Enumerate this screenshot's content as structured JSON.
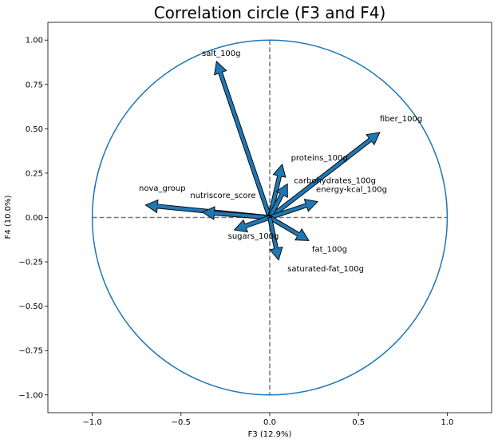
{
  "chart_data": {
    "type": "scatter",
    "title": "Correlation circle (F3 and F4)",
    "xlabel": "F3 (12.9%)",
    "ylabel": "F4 (10.0%)",
    "xlim": [
      -1.25,
      1.25
    ],
    "ylim": [
      -1.1,
      1.1
    ],
    "xticks": [
      -1.0,
      -0.5,
      0.0,
      0.5,
      1.0
    ],
    "xtick_labels": [
      "−1.0",
      "−0.5",
      "0.0",
      "0.5",
      "1.0"
    ],
    "yticks": [
      1.0,
      0.75,
      0.5,
      0.25,
      0.0,
      -0.25,
      -0.5,
      -0.75,
      -1.0
    ],
    "ytick_labels": [
      "1.00",
      "0.75",
      "0.50",
      "0.25",
      "0.00",
      "−0.25",
      "−0.50",
      "−0.75",
      "−1.00"
    ],
    "grid": false,
    "unit_circle": true,
    "arrow_color": "#1f77b4",
    "circle_color": "#1f77b4",
    "vectors": [
      {
        "name": "salt_100g",
        "x": -0.3,
        "y": 0.88
      },
      {
        "name": "fiber_100g",
        "x": 0.62,
        "y": 0.48
      },
      {
        "name": "proteins_100g",
        "x": 0.07,
        "y": 0.3
      },
      {
        "name": "carbohydrates_100g",
        "x": 0.1,
        "y": 0.19
      },
      {
        "name": "energy-kcal_100g",
        "x": 0.27,
        "y": 0.09
      },
      {
        "name": "nova_group",
        "x": -0.7,
        "y": 0.07
      },
      {
        "name": "nutriscore_score",
        "x": -0.38,
        "y": 0.03
      },
      {
        "name": "sugars_100g",
        "x": -0.2,
        "y": -0.07
      },
      {
        "name": "fat_100g",
        "x": 0.22,
        "y": -0.13
      },
      {
        "name": "saturated-fat_100g",
        "x": 0.05,
        "y": -0.24
      }
    ]
  }
}
